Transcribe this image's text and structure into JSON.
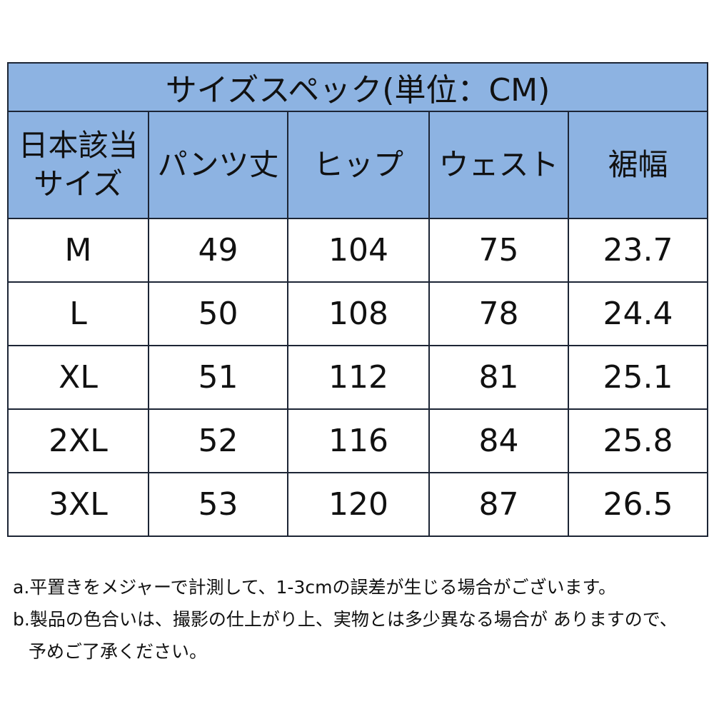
{
  "table": {
    "title": "サイズスペック(単位：CM)",
    "header": [
      "日本該当サイズ",
      "パンツ丈",
      "ヒップ",
      "ウェスト",
      "裾幅"
    ],
    "rows": [
      [
        "M",
        "49",
        "104",
        "75",
        "23.7"
      ],
      [
        "L",
        "50",
        "108",
        "78",
        "24.4"
      ],
      [
        "XL",
        "51",
        "112",
        "81",
        "25.1"
      ],
      [
        "2XL",
        "52",
        "116",
        "84",
        "25.8"
      ],
      [
        "3XL",
        "53",
        "120",
        "87",
        "26.5"
      ]
    ]
  },
  "notes": [
    {
      "lines": [
        "a.平置きをメジャーで計測して、1-3cmの誤差が生じる場合がございます。"
      ]
    },
    {
      "lines": [
        "b.製品の色合いは、撮影の仕上がり上、実物とは多少異なる場合が ありますので、",
        "予めご了承ください。"
      ]
    }
  ]
}
